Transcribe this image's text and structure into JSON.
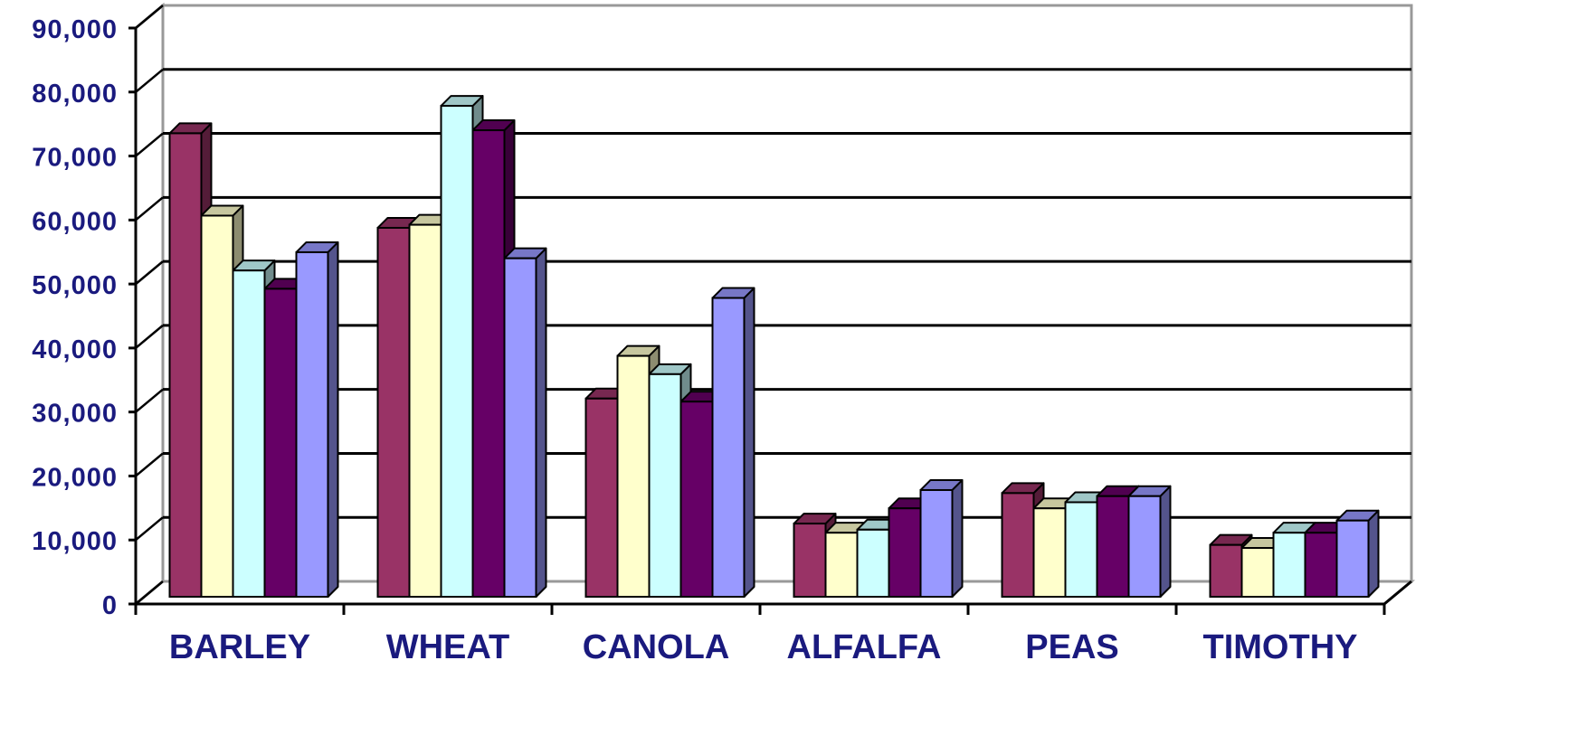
{
  "chart_data": {
    "type": "bar",
    "style": "3d-clustered-column",
    "categories": [
      "BARLEY",
      "WHEAT",
      "CANOLA",
      "ALFALFA",
      "PEAS",
      "TIMOTHY"
    ],
    "series": [
      {
        "color": "#993366",
        "values": [
          76000,
          60500,
          32500,
          12000,
          17000,
          8500
        ]
      },
      {
        "color": "#ffffcc",
        "values": [
          62500,
          61000,
          39500,
          10500,
          14500,
          8000
        ]
      },
      {
        "color": "#ccffff",
        "values": [
          53500,
          80500,
          36500,
          11000,
          15500,
          10500
        ]
      },
      {
        "color": "#660066",
        "values": [
          50500,
          76500,
          32000,
          14500,
          16500,
          10500
        ]
      },
      {
        "color": "#9999ff",
        "values": [
          56500,
          55500,
          49000,
          17500,
          16500,
          12500
        ]
      }
    ],
    "ylim": [
      0,
      90000
    ],
    "y_ticks": [
      "0",
      "10,000",
      "20,000",
      "30,000",
      "40,000",
      "50,000",
      "60,000",
      "70,000",
      "80,000",
      "90,000"
    ],
    "grid": true,
    "legend": "none"
  }
}
